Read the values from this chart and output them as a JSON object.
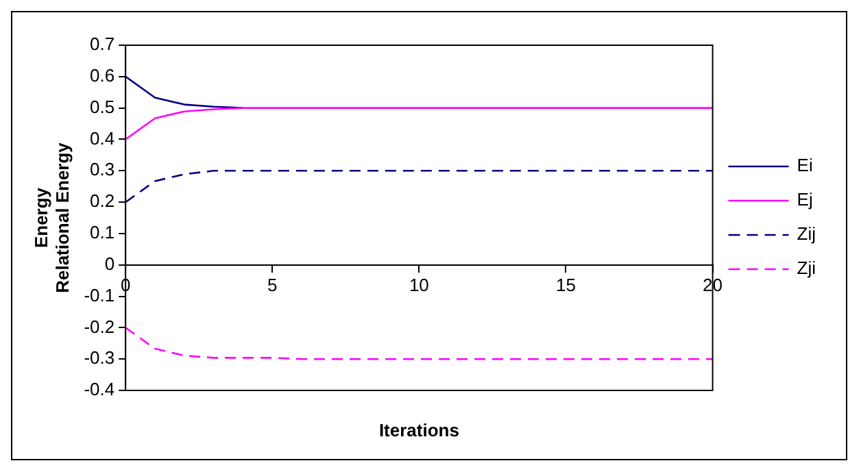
{
  "chart_data": {
    "type": "line",
    "xlabel": "Iterations",
    "ylabel": "Energy\nRelational Energy",
    "x": [
      0,
      1,
      2,
      3,
      4,
      5,
      6,
      7,
      8,
      9,
      10,
      11,
      12,
      13,
      14,
      15,
      16,
      17,
      18,
      19,
      20
    ],
    "series": [
      {
        "name": "Ei",
        "color": "#000080",
        "line_style": "solid",
        "values": [
          0.6,
          0.533,
          0.511,
          0.504,
          0.5,
          null,
          null,
          null,
          null,
          null,
          null,
          null,
          null,
          null,
          null,
          null,
          null,
          null,
          null,
          null,
          null
        ]
      },
      {
        "name": "Ej",
        "color": "#ff00ff",
        "line_style": "solid",
        "values": [
          0.4,
          0.467,
          0.489,
          0.496,
          0.5,
          0.5,
          0.5,
          0.5,
          0.5,
          0.5,
          0.5,
          0.5,
          0.5,
          0.5,
          0.5,
          0.5,
          0.5,
          0.5,
          0.5,
          0.5,
          0.5
        ]
      },
      {
        "name": "Zij",
        "color": "#000080",
        "line_style": "dashed",
        "values": [
          0.2,
          0.267,
          0.289,
          0.3,
          0.3,
          0.3,
          0.3,
          0.3,
          0.3,
          0.3,
          0.3,
          0.3,
          0.3,
          0.3,
          0.3,
          0.3,
          0.3,
          0.3,
          0.3,
          0.3,
          0.3
        ]
      },
      {
        "name": "Zji",
        "color": "#ff00ff",
        "line_style": "dashed",
        "values": [
          -0.2,
          -0.267,
          -0.289,
          -0.296,
          -0.296,
          -0.296,
          -0.3,
          -0.3,
          -0.3,
          -0.3,
          -0.3,
          -0.3,
          -0.3,
          -0.3,
          -0.3,
          -0.3,
          -0.3,
          -0.3,
          -0.3,
          -0.3,
          -0.3
        ]
      }
    ],
    "xlim": [
      0,
      20
    ],
    "xticks": [
      0,
      5,
      10,
      15,
      20
    ],
    "ylim": [
      -0.4,
      0.7
    ],
    "yticks": [
      -0.4,
      -0.3,
      -0.2,
      -0.1,
      0,
      0.1,
      0.2,
      0.3,
      0.4,
      0.5,
      0.6,
      0.7
    ],
    "grid": false,
    "legend": "right",
    "marker": "none"
  }
}
